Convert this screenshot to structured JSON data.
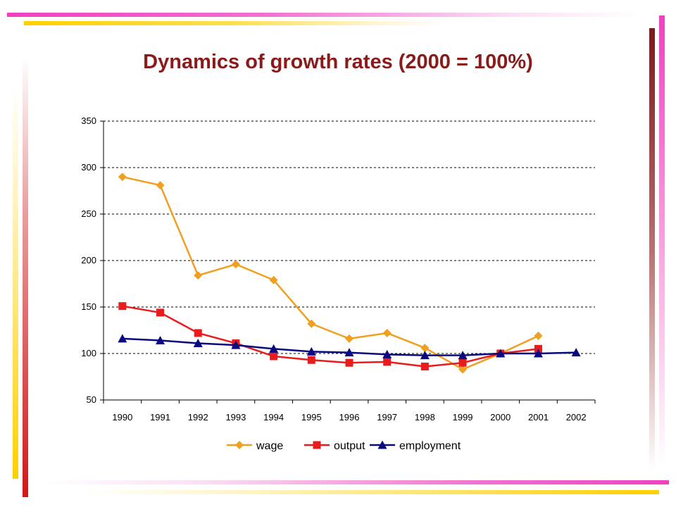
{
  "slide": {
    "title": "Dynamics of growth rates (2000 = 100%)"
  },
  "chart_data": {
    "type": "line",
    "title": "",
    "xlabel": "",
    "ylabel": "",
    "categories": [
      "1990",
      "1991",
      "1992",
      "1993",
      "1994",
      "1995",
      "1996",
      "1997",
      "1998",
      "1999",
      "2000",
      "2001",
      "2002"
    ],
    "ylim": [
      50,
      350
    ],
    "yticks": [
      50,
      100,
      150,
      200,
      250,
      300,
      350
    ],
    "grid": "horizontal dashed",
    "legend_position": "bottom",
    "series": [
      {
        "name": "wage",
        "color": "#f0a020",
        "marker": "diamond",
        "values": [
          290,
          281,
          184,
          196,
          179,
          132,
          116,
          122,
          106,
          83,
          100,
          119,
          null
        ]
      },
      {
        "name": "output",
        "color": "#e81c1c",
        "marker": "square",
        "values": [
          151,
          144,
          122,
          111,
          97,
          93,
          90,
          91,
          86,
          90,
          100,
          105,
          null
        ]
      },
      {
        "name": "employment",
        "color": "#0a0a80",
        "marker": "triangle",
        "values": [
          116,
          114,
          111,
          109,
          105,
          102,
          101,
          99,
          98,
          98,
          100,
          100,
          101
        ]
      }
    ]
  }
}
